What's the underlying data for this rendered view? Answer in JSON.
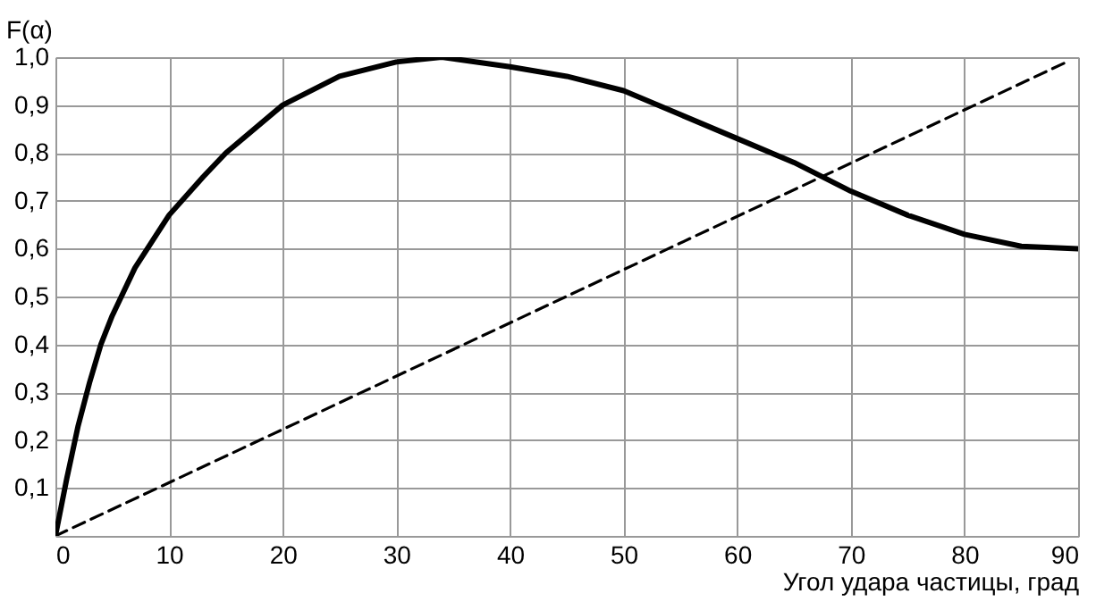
{
  "chart_data": {
    "type": "line",
    "xlabel": "Угол удара частицы, град",
    "ylabel": "F(α)",
    "xlim": [
      0,
      90
    ],
    "ylim": [
      0,
      1.0
    ],
    "xticks": [
      0,
      10,
      20,
      30,
      40,
      50,
      60,
      70,
      80,
      90
    ],
    "yticks": [
      {
        "value": 0,
        "label": null
      },
      {
        "value": 0.1,
        "label": "0,1"
      },
      {
        "value": 0.2,
        "label": "0,2"
      },
      {
        "value": 0.3,
        "label": "0,3"
      },
      {
        "value": 0.4,
        "label": "0,4"
      },
      {
        "value": 0.5,
        "label": "0,5"
      },
      {
        "value": 0.6,
        "label": "0,6"
      },
      {
        "value": 0.7,
        "label": "0,7"
      },
      {
        "value": 0.8,
        "label": "0,8"
      },
      {
        "value": 0.9,
        "label": "0,9"
      },
      {
        "value": 1.0,
        "label": "1,0"
      }
    ],
    "grid": true,
    "series": [
      {
        "color": "#000000",
        "line_style": "solid",
        "x": [
          0,
          1,
          2,
          3,
          4,
          5,
          7,
          10,
          13,
          15,
          20,
          25,
          30,
          34,
          40,
          45,
          50,
          55,
          60,
          65,
          70,
          75,
          80,
          85,
          90
        ],
        "values": [
          0,
          0.12,
          0.23,
          0.32,
          0.4,
          0.46,
          0.56,
          0.67,
          0.75,
          0.8,
          0.9,
          0.96,
          0.99,
          1.0,
          0.98,
          0.96,
          0.93,
          0.88,
          0.83,
          0.78,
          0.72,
          0.67,
          0.63,
          0.605,
          0.6
        ]
      },
      {
        "color": "#000000",
        "line_style": "dashed",
        "x": [
          0,
          89
        ],
        "values": [
          0,
          0.99
        ]
      }
    ]
  }
}
